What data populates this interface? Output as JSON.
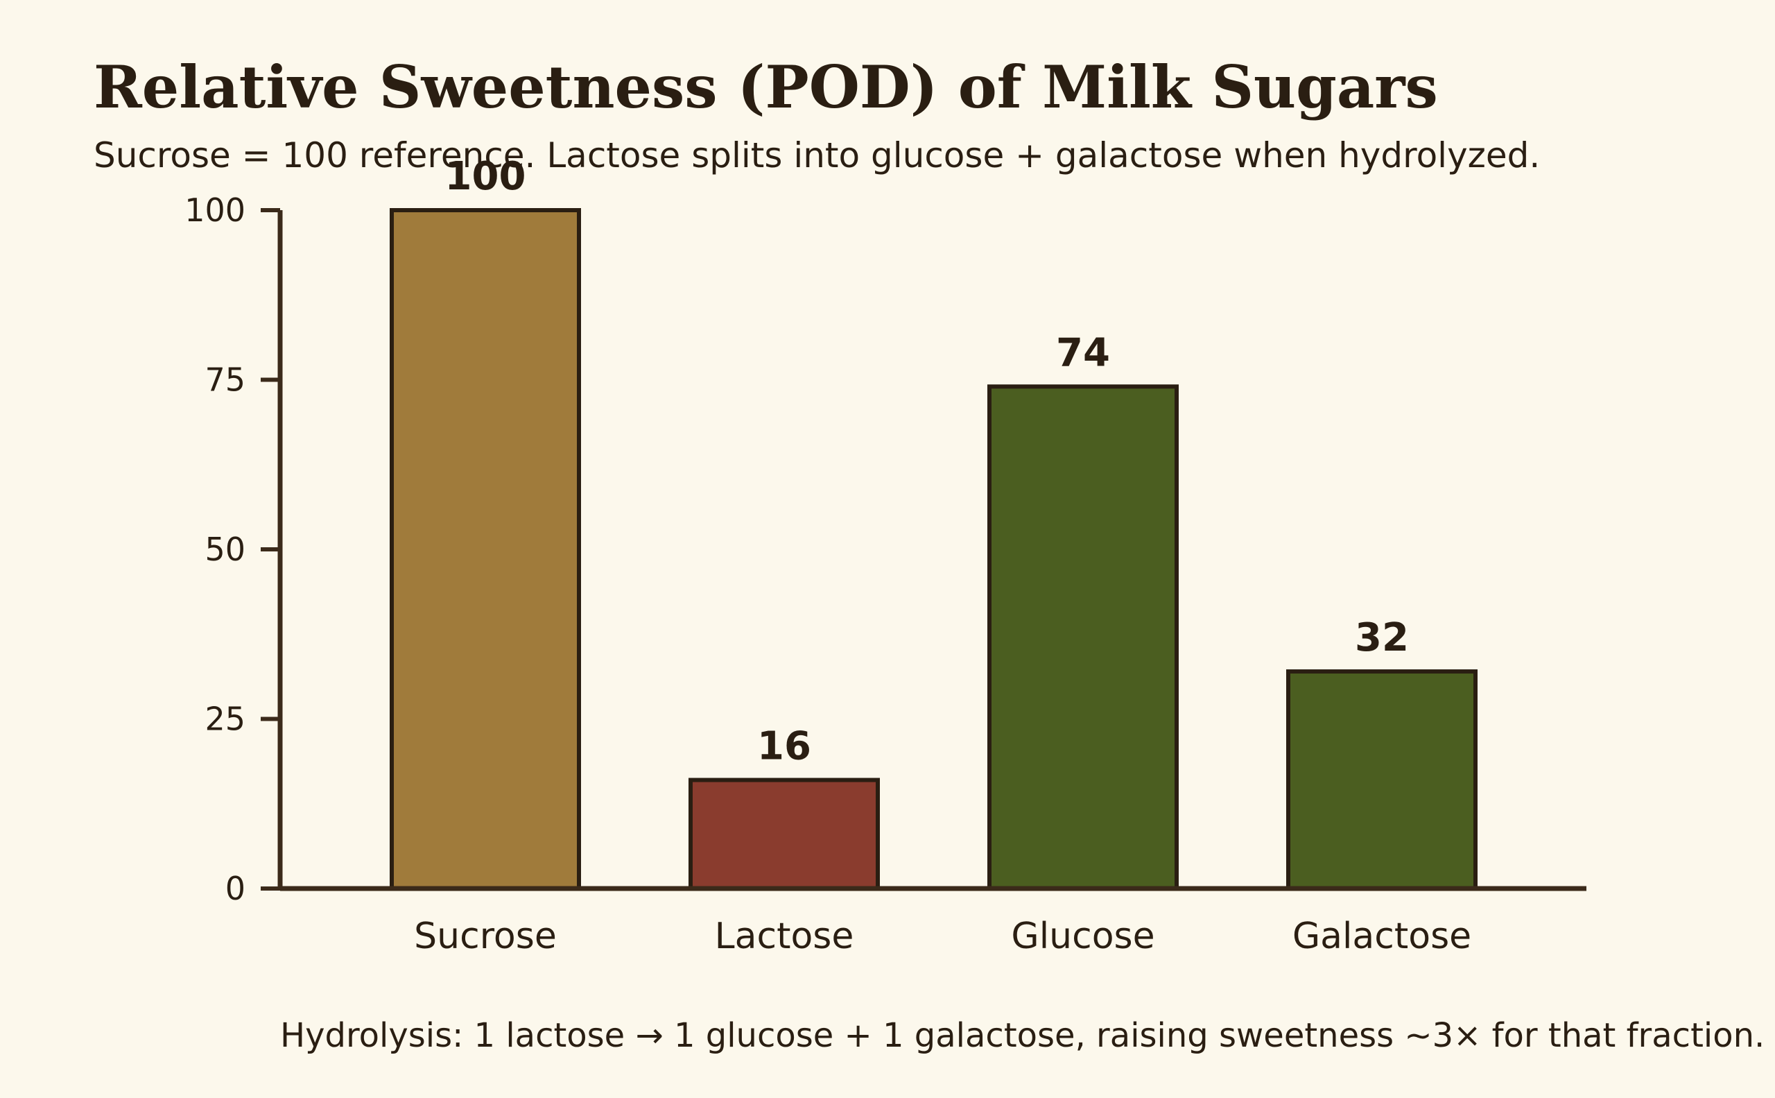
{
  "colors": {
    "background": "#fcf8ec",
    "axis": "#3b2a1a",
    "text": "#2a1e12",
    "bar_outline": "#2a1e12"
  },
  "chart_data": {
    "type": "bar",
    "title": "Relative Sweetness (POD) of Milk Sugars",
    "subtitle": "Sucrose = 100 reference. Lactose splits into glucose + galactose when hydrolyzed.",
    "categories": [
      "Sucrose",
      "Lactose",
      "Glucose",
      "Galactose"
    ],
    "values": [
      100,
      16,
      74,
      32
    ],
    "bar_colors": [
      "#a07b3b",
      "#8a3c2e",
      "#4b5e20",
      "#4b5e20"
    ],
    "ylim": [
      0,
      100
    ],
    "yticks": [
      0,
      25,
      50,
      75,
      100
    ],
    "xlabel": "",
    "ylabel": "",
    "grid": false,
    "footnote": "Hydrolysis: 1 lactose → 1 glucose + 1 galactose, raising sweetness ~3× for that fraction."
  }
}
